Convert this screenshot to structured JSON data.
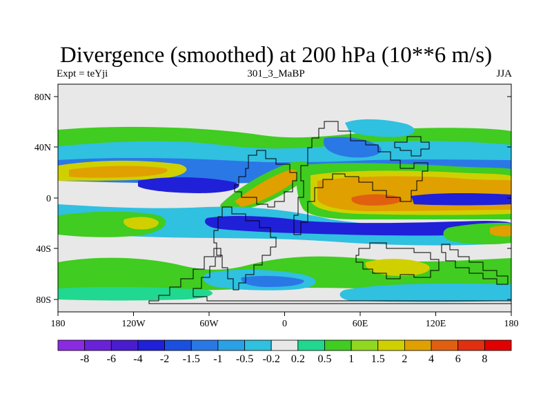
{
  "title": "Divergence (smoothed) at 200 hPa (10**6 m/s)",
  "left_label": "Expt = teYji",
  "center_label": "301_3_MaBP",
  "right_label": "JJA",
  "lat_ticks": [
    "80N",
    "40N",
    "0",
    "40S",
    "80S"
  ],
  "lon_ticks": [
    "180",
    "120W",
    "60W",
    "0",
    "60E",
    "120E",
    "180"
  ],
  "colorbar": {
    "labels": [
      "-8",
      "-6",
      "-4",
      "-2",
      "-1.5",
      "-1",
      "-0.5",
      "-0.2",
      "0.2",
      "0.5",
      "1",
      "1.5",
      "2",
      "4",
      "6",
      "8"
    ],
    "colors": [
      "#8a2be2",
      "#6a22d8",
      "#4a1cd0",
      "#2020d8",
      "#1a50e0",
      "#2a78e6",
      "#2aa0e6",
      "#30c0e0",
      "#e8e8e8",
      "#20d890",
      "#40cc20",
      "#90d820",
      "#d0d000",
      "#e0a000",
      "#e06010",
      "#e03010",
      "#e00000"
    ]
  },
  "map_palette": {
    "background": "#e8e8e8",
    "neg_strong": "#2020d8",
    "neg": "#2a78e6",
    "neg_weak": "#30c0e0",
    "pos_weak": "#20d890",
    "pos": "#40cc20",
    "pos_mid": "#d0d000",
    "pos_strong": "#e0a000",
    "pos_max": "#e06010"
  }
}
